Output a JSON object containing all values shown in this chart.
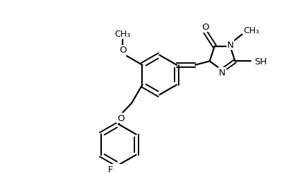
{
  "bg_color": "#ffffff",
  "line_color": "#000000",
  "lw": 1.6,
  "lw2": 1.4,
  "fs": 9.5,
  "figsize": [
    4.36,
    2.51
  ],
  "dpi": 100,
  "xlim": [
    0,
    10.0
  ],
  "ylim": [
    0,
    5.8
  ]
}
